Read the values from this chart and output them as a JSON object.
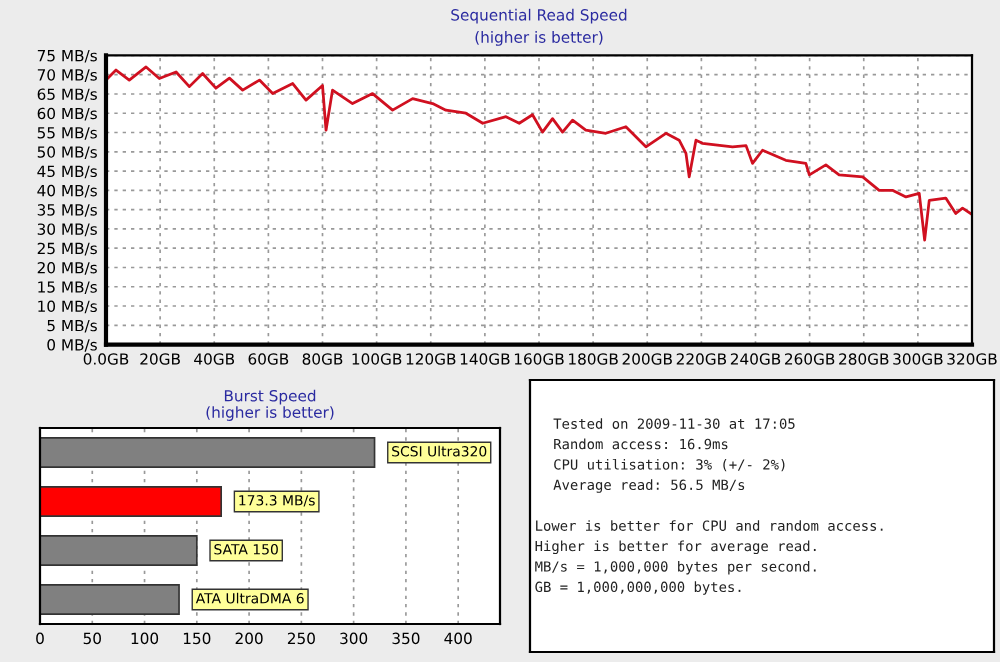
{
  "chart_data": [
    {
      "type": "line",
      "title": "Sequential Read Speed",
      "subtitle": "(higher is better)",
      "grid": true,
      "marker": "none",
      "line_style": "solid",
      "xlim": [
        0,
        320
      ],
      "xticks": [
        {
          "value": 0,
          "label": "0.0GB"
        },
        {
          "value": 20,
          "label": "20GB"
        },
        {
          "value": 40,
          "label": "40GB"
        },
        {
          "value": 60,
          "label": "60GB"
        },
        {
          "value": 80,
          "label": "80GB"
        },
        {
          "value": 100,
          "label": "100GB"
        },
        {
          "value": 120,
          "label": "120GB"
        },
        {
          "value": 140,
          "label": "140GB"
        },
        {
          "value": 160,
          "label": "160GB"
        },
        {
          "value": 180,
          "label": "180GB"
        },
        {
          "value": 200,
          "label": "200GB"
        },
        {
          "value": 220,
          "label": "220GB"
        },
        {
          "value": 240,
          "label": "240GB"
        },
        {
          "value": 260,
          "label": "260GB"
        },
        {
          "value": 280,
          "label": "280GB"
        },
        {
          "value": 300,
          "label": "300GB"
        },
        {
          "value": 320,
          "label": "320GB"
        }
      ],
      "ylim": [
        0,
        75
      ],
      "yticks": [
        {
          "value": 0,
          "label": "0 MB/s"
        },
        {
          "value": 5,
          "label": "5 MB/s"
        },
        {
          "value": 10,
          "label": "10 MB/s"
        },
        {
          "value": 15,
          "label": "15 MB/s"
        },
        {
          "value": 20,
          "label": "20 MB/s"
        },
        {
          "value": 25,
          "label": "25 MB/s"
        },
        {
          "value": 30,
          "label": "30 MB/s"
        },
        {
          "value": 35,
          "label": "35 MB/s"
        },
        {
          "value": 40,
          "label": "40 MB/s"
        },
        {
          "value": 45,
          "label": "45 MB/s"
        },
        {
          "value": 50,
          "label": "50 MB/s"
        },
        {
          "value": 55,
          "label": "55 MB/s"
        },
        {
          "value": 60,
          "label": "60 MB/s"
        },
        {
          "value": 65,
          "label": "65 MB/s"
        },
        {
          "value": 70,
          "label": "70 MB/s"
        },
        {
          "value": 75,
          "label": "75 MB/s"
        }
      ],
      "series": [
        {
          "color": "#d01020",
          "x": [
            0,
            3.7,
            8.6,
            14.8,
            19.7,
            25.9,
            30.8,
            35.7,
            40.6,
            45.6,
            50.5,
            56.7,
            61.6,
            69,
            73.9,
            80,
            81.3,
            83.7,
            91.1,
            98.5,
            105.9,
            113.3,
            120.7,
            125.6,
            133,
            139.2,
            147.8,
            152.7,
            157.6,
            161.3,
            165,
            168.7,
            172.4,
            177.3,
            184.7,
            192.1,
            199.5,
            206.9,
            211.8,
            214.3,
            215.5,
            218,
            220.4,
            231.5,
            236.5,
            238.9,
            242.6,
            251.2,
            258.6,
            259.9,
            266,
            270.9,
            279.6,
            285.7,
            290.6,
            295.6,
            300.5,
            302.5,
            304.2,
            310.3,
            314,
            316.5,
            319.5
          ],
          "values": [
            68.6,
            71.2,
            68.6,
            72,
            69,
            70.7,
            66.9,
            70.3,
            66.5,
            69.1,
            66,
            68.6,
            65.1,
            67.7,
            63.4,
            67.2,
            55.6,
            66,
            62.5,
            65.1,
            60.8,
            63.8,
            62.5,
            60.8,
            60,
            57.4,
            59.1,
            57.4,
            59.6,
            55.1,
            58.6,
            55.1,
            58.2,
            55.6,
            54.8,
            56.5,
            51.3,
            54.8,
            53,
            49.6,
            43.5,
            53,
            52.2,
            51.3,
            51.6,
            47,
            50.4,
            47.8,
            47,
            44,
            46.6,
            44,
            43.5,
            40,
            40,
            38.3,
            39.2,
            27.1,
            37.4,
            38,
            34,
            35.4,
            34
          ]
        }
      ]
    },
    {
      "type": "bar",
      "orientation": "horizontal",
      "title": "Burst Speed",
      "subtitle": "(higher is better)",
      "grid": "x",
      "categories": [
        "SCSI Ultra320",
        null,
        "SATA 150",
        "ATA UltraDMA 6"
      ],
      "values": [
        320,
        173.3,
        150,
        133
      ],
      "value_labels": [
        null,
        "173.3 MB/s",
        null,
        null
      ],
      "colors": [
        "#808080",
        "#ff0000",
        "#808080",
        "#808080"
      ],
      "xlim": [
        0,
        440
      ],
      "xticks": [
        0,
        50,
        100,
        150,
        200,
        250,
        300,
        350,
        400
      ]
    },
    {
      "type": "other",
      "annotations": [
        "Tested on 2009-11-30 at 17:05",
        "Random access: 16.9ms",
        "CPU utilisation: 3% (+/- 2%)",
        "Average read: 56.5 MB/s",
        "Lower is better for CPU and random access.",
        "Higher is better for average read.",
        "MB/s = 1,000,000 bytes per second.",
        "GB = 1,000,000,000 bytes."
      ]
    }
  ]
}
